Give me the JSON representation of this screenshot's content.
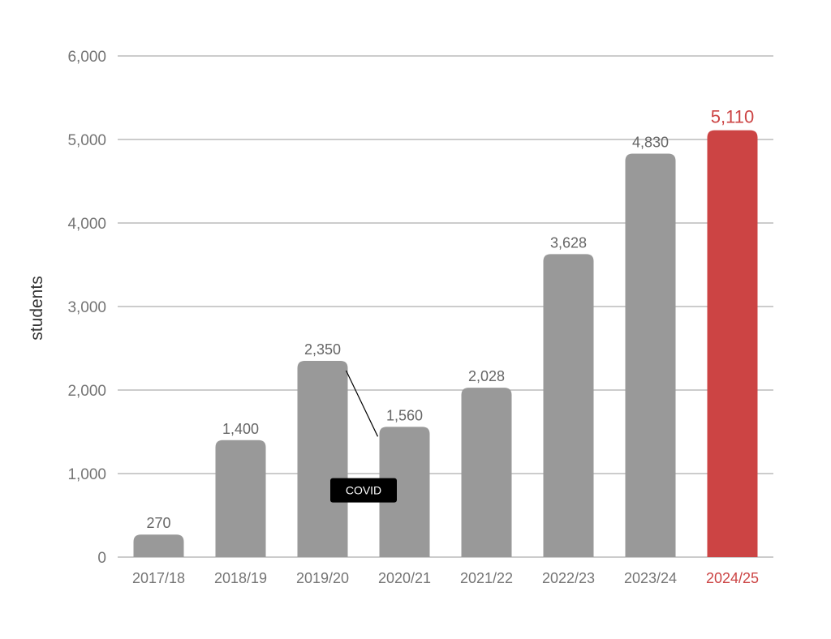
{
  "chart_data": {
    "type": "bar",
    "categories": [
      "2017/18",
      "2018/19",
      "2019/20",
      "2020/21",
      "2021/22",
      "2022/23",
      "2023/24",
      "2024/25"
    ],
    "values": [
      270,
      1400,
      2350,
      1560,
      2028,
      3628,
      4830,
      5110
    ],
    "value_labels": [
      "270",
      "1,400",
      "2,350",
      "1,560",
      "2,028",
      "3,628",
      "4,830",
      "5,110"
    ],
    "highlight_index": 7,
    "ylabel": "students",
    "xlabel": "",
    "title": "",
    "ylim": [
      0,
      6000
    ],
    "yticks": [
      0,
      1000,
      2000,
      3000,
      4000,
      5000,
      6000
    ],
    "ytick_labels": [
      "0",
      "1,000",
      "2,000",
      "3,000",
      "4,000",
      "5,000",
      "6,000"
    ],
    "grid": true,
    "legend": "none",
    "annotations": [
      {
        "text": "COVID",
        "from_category": "2019/20",
        "to_category": "2020/21"
      }
    ],
    "colors": {
      "bar": "#999999",
      "highlight": "#cc4444",
      "highlight_label": "#cc4444",
      "grid": "#999999",
      "annotation_bg": "#000000",
      "annotation_text": "#ffffff"
    }
  }
}
